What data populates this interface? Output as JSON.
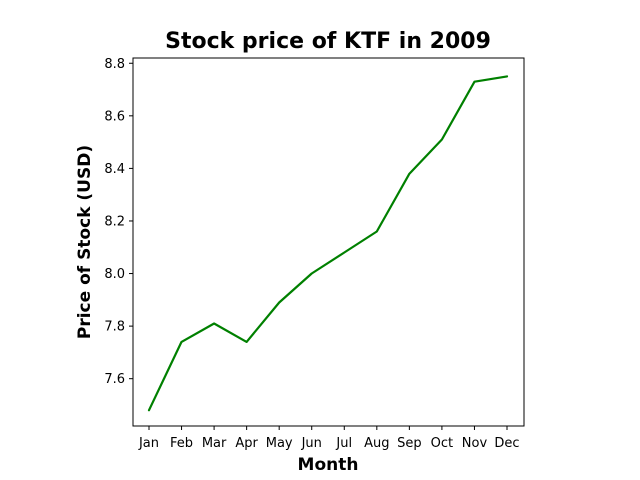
{
  "chart_data": {
    "type": "line",
    "title": "Stock price of KTF in 2009",
    "xlabel": "Month",
    "ylabel": "Price of Stock (USD)",
    "categories": [
      "Jan",
      "Feb",
      "Mar",
      "Apr",
      "May",
      "Jun",
      "Jul",
      "Aug",
      "Sep",
      "Oct",
      "Nov",
      "Dec"
    ],
    "series": [
      {
        "values": [
          7.48,
          7.74,
          7.81,
          7.74,
          7.89,
          8.0,
          8.08,
          8.16,
          8.38,
          8.51,
          8.73,
          8.75
        ],
        "color": "#008000"
      }
    ],
    "ylim": [
      7.42,
      8.82
    ],
    "yticks": [
      "7.6",
      "7.8",
      "8.0",
      "8.2",
      "8.4",
      "8.6",
      "8.8"
    ],
    "grid": false,
    "legend": "none"
  }
}
